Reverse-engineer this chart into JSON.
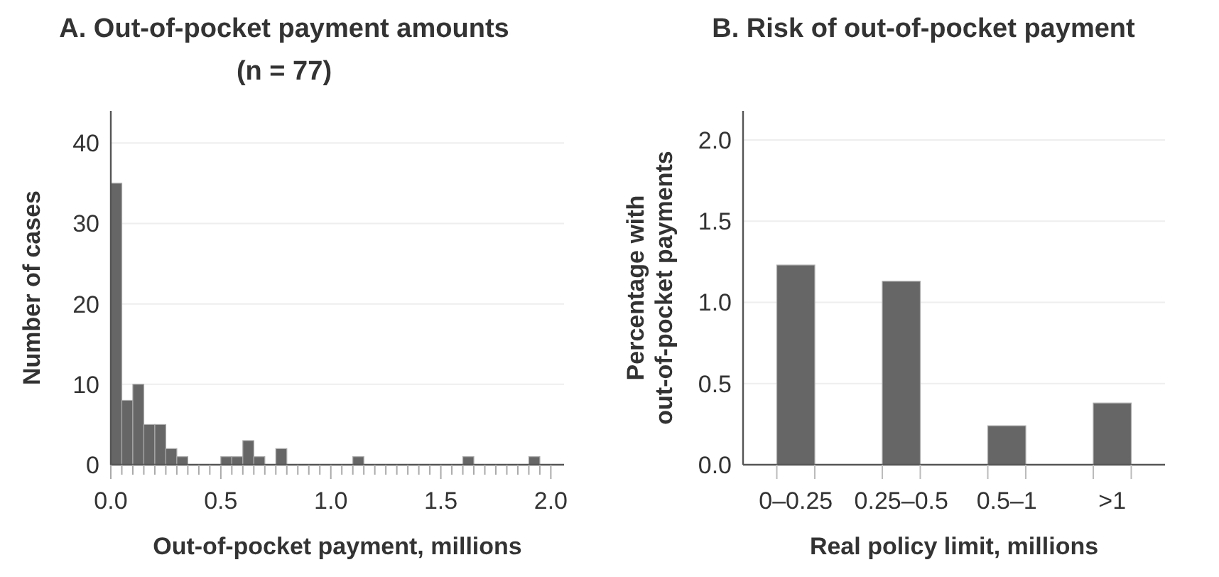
{
  "chart_data": [
    {
      "type": "histogram",
      "title": "A.  Out-of-pocket payment amounts\n(n = 77)",
      "xlabel": "Out-of-pocket payment, millions",
      "ylabel": "Number of cases",
      "color": "#666666",
      "bins": [
        0,
        0.05,
        0.1,
        0.15,
        0.2,
        0.25,
        0.3,
        0.35,
        0.4,
        0.45,
        0.5,
        0.55,
        0.6,
        0.65,
        0.7,
        0.75,
        0.8,
        0.85,
        0.9,
        0.95,
        1,
        1.05,
        1.1,
        1.15,
        1.2,
        1.25,
        1.3,
        1.35,
        1.4,
        1.45,
        1.5,
        1.55,
        1.6,
        1.65,
        1.7,
        1.75,
        1.8,
        1.85,
        1.9,
        1.95,
        2
      ],
      "values": [
        35,
        8,
        10,
        5,
        5,
        2,
        1,
        0,
        0,
        0,
        1,
        1,
        3,
        1,
        0,
        2,
        0,
        0,
        0,
        0,
        0,
        0,
        1,
        0,
        0,
        0,
        0,
        0,
        0,
        0,
        0,
        0,
        1,
        0,
        0,
        0,
        0,
        0,
        1,
        0
      ],
      "xlim": [
        0,
        2.06
      ],
      "ylim": [
        0,
        44
      ],
      "xticks": [
        {
          "value": 0,
          "label": "0.0"
        },
        {
          "value": 0.05,
          "label": null
        },
        {
          "value": 0.1,
          "label": null
        },
        {
          "value": 0.15,
          "label": null
        },
        {
          "value": 0.2,
          "label": null
        },
        {
          "value": 0.25,
          "label": null
        },
        {
          "value": 0.3,
          "label": null
        },
        {
          "value": 0.35,
          "label": null
        },
        {
          "value": 0.4,
          "label": null
        },
        {
          "value": 0.45,
          "label": null
        },
        {
          "value": 0.5,
          "label": "0.5"
        },
        {
          "value": 0.55,
          "label": null
        },
        {
          "value": 0.6,
          "label": null
        },
        {
          "value": 0.65,
          "label": null
        },
        {
          "value": 0.7,
          "label": null
        },
        {
          "value": 0.75,
          "label": null
        },
        {
          "value": 0.8,
          "label": null
        },
        {
          "value": 0.85,
          "label": null
        },
        {
          "value": 0.9,
          "label": null
        },
        {
          "value": 0.95,
          "label": null
        },
        {
          "value": 1,
          "label": "1.0"
        },
        {
          "value": 1.05,
          "label": null
        },
        {
          "value": 1.1,
          "label": null
        },
        {
          "value": 1.15,
          "label": null
        },
        {
          "value": 1.2,
          "label": null
        },
        {
          "value": 1.25,
          "label": null
        },
        {
          "value": 1.3,
          "label": null
        },
        {
          "value": 1.35,
          "label": null
        },
        {
          "value": 1.4,
          "label": null
        },
        {
          "value": 1.45,
          "label": null
        },
        {
          "value": 1.5,
          "label": "1.5"
        },
        {
          "value": 1.55,
          "label": null
        },
        {
          "value": 1.6,
          "label": null
        },
        {
          "value": 1.65,
          "label": null
        },
        {
          "value": 1.7,
          "label": null
        },
        {
          "value": 1.75,
          "label": null
        },
        {
          "value": 1.8,
          "label": null
        },
        {
          "value": 1.85,
          "label": null
        },
        {
          "value": 1.9,
          "label": null
        },
        {
          "value": 1.95,
          "label": null
        },
        {
          "value": 2,
          "label": "2.0"
        }
      ],
      "yticks": [
        0,
        10,
        20,
        30,
        40
      ],
      "grid": "y"
    },
    {
      "type": "bar",
      "title": "B.  Risk of out-of-pocket payment",
      "xlabel": "Real policy limit, millions",
      "ylabel": "Percentage with\nout-of-pocket payments",
      "color": "#666666",
      "categories": [
        "0–0.25",
        "0.25–0.5",
        "0.5–1",
        ">1"
      ],
      "values": [
        1.23,
        1.13,
        0.24,
        0.38
      ],
      "ylim": [
        0,
        2.18
      ],
      "yticks": [
        {
          "value": 0,
          "label": "0.0"
        },
        {
          "value": 0.5,
          "label": "0.5"
        },
        {
          "value": 1,
          "label": "1.0"
        },
        {
          "value": 1.5,
          "label": "1.5"
        },
        {
          "value": 2,
          "label": "2.0"
        }
      ],
      "grid": "y"
    }
  ]
}
